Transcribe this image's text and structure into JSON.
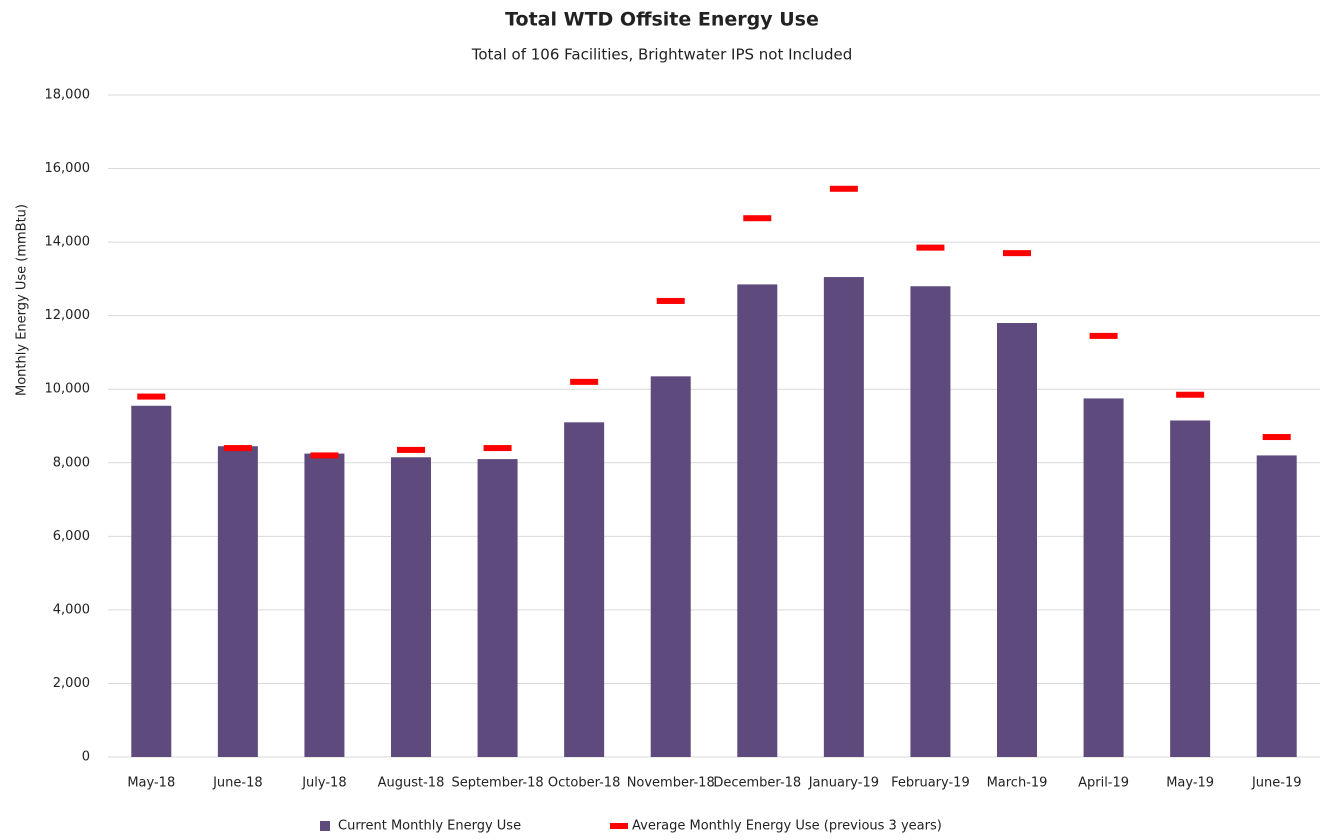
{
  "chart_data": {
    "type": "bar",
    "title": "Total WTD Offsite Energy Use",
    "subtitle": "Total of 106 Facilities, Brightwater IPS not Included",
    "y_label": "Monthly Energy Use (mmBtu)",
    "categories": [
      "May-18",
      "June-18",
      "July-18",
      "August-18",
      "September-18",
      "October-18",
      "November-18",
      "December-18",
      "January-19",
      "February-19",
      "March-19",
      "April-19",
      "May-19",
      "June-19"
    ],
    "series": [
      {
        "name": "Current Monthly Energy Use",
        "color": "#5e4a7d",
        "mark": "bar",
        "values": [
          9550,
          8450,
          8250,
          8150,
          8100,
          9100,
          10350,
          12850,
          13050,
          12800,
          11800,
          9750,
          9150,
          8200
        ]
      },
      {
        "name": "Average Monthly Energy Use (previous 3 years)",
        "color": "#ff0000",
        "mark": "dash",
        "values": [
          9800,
          8400,
          8200,
          8350,
          8400,
          10200,
          12400,
          14650,
          15450,
          13850,
          13700,
          11450,
          9850,
          8700
        ]
      }
    ],
    "ylim": [
      0,
      18000
    ],
    "yticks": [
      0,
      {
        "value": 2000,
        "label": "2,000"
      },
      {
        "value": 4000,
        "label": "4,000"
      },
      {
        "value": 6000,
        "label": "6,000"
      },
      {
        "value": 8000,
        "label": "8,000"
      },
      {
        "value": 10000,
        "label": "10,000"
      },
      {
        "value": 12000,
        "label": "12,000"
      },
      {
        "value": 14000,
        "label": "14,000"
      },
      {
        "value": 16000,
        "label": "16,000"
      },
      {
        "value": 18000,
        "label": "18,000"
      }
    ],
    "grid": true,
    "legend": "bottom"
  }
}
